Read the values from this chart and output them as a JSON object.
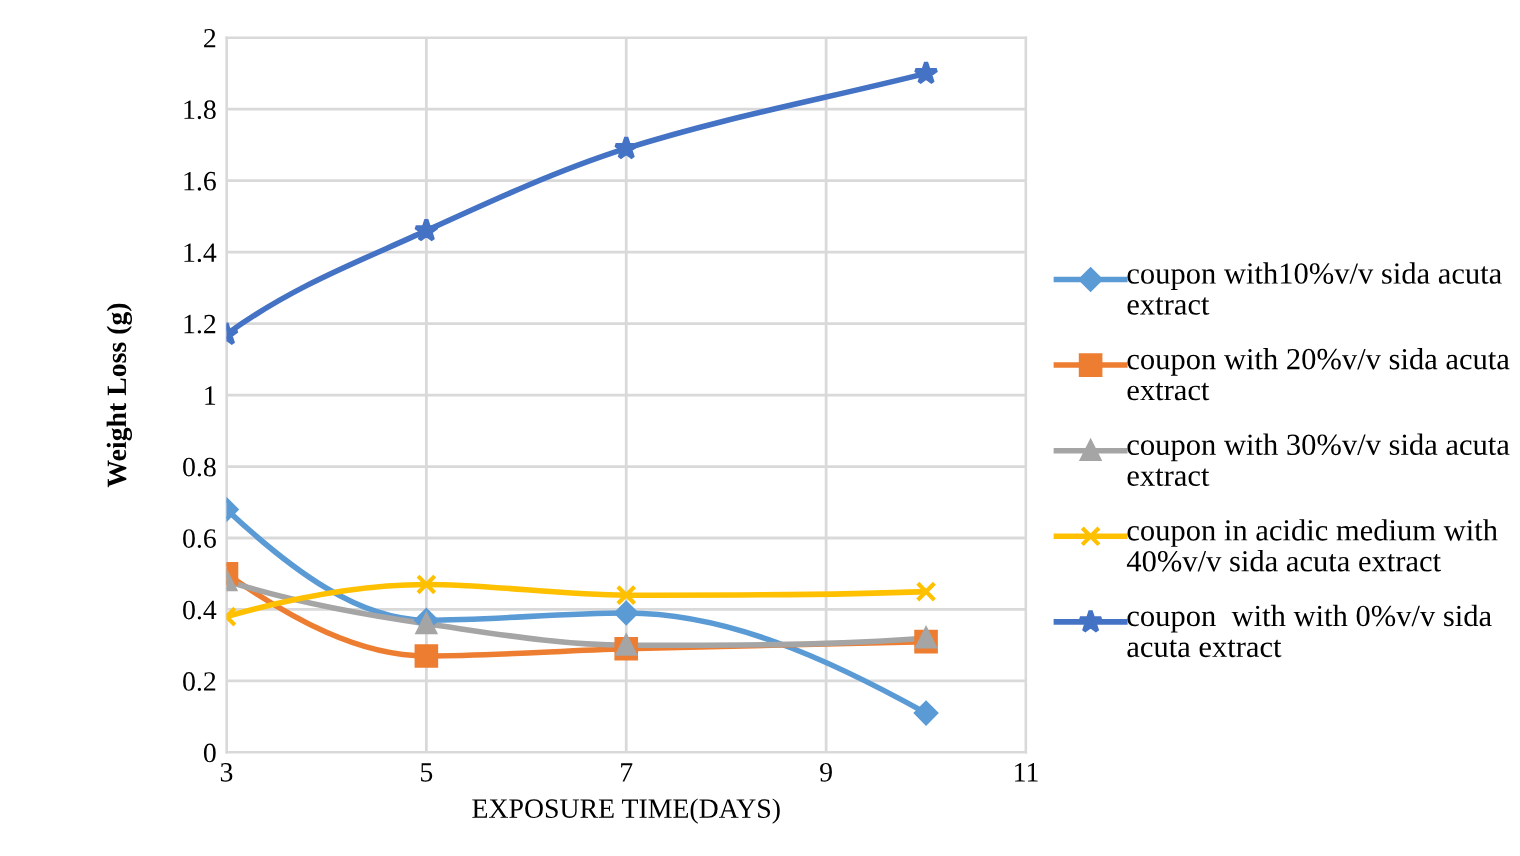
{
  "chart_data": {
    "type": "line",
    "xlabel": "EXPOSURE TIME(DAYS)",
    "ylabel": "Weight Loss (g)",
    "x": [
      3,
      5,
      7,
      10
    ],
    "series": [
      {
        "name": "coupon with10%v/v sida acuta extract",
        "color": "#5b9bd5",
        "marker": "diamond",
        "values": [
          0.68,
          0.37,
          0.39,
          0.11
        ]
      },
      {
        "name": "coupon with 20%v/v sida acuta extract",
        "color": "#ed7d31",
        "marker": "square",
        "values": [
          0.5,
          0.27,
          0.29,
          0.31
        ]
      },
      {
        "name": "coupon with 30%v/v sida acuta extract",
        "color": "#a5a5a5",
        "marker": "triangle",
        "values": [
          0.48,
          0.36,
          0.3,
          0.32
        ]
      },
      {
        "name": "coupon in acidic medium with 40%v/v sida acuta extract",
        "color": "#ffc000",
        "marker": "cross",
        "values": [
          0.38,
          0.47,
          0.44,
          0.45
        ]
      },
      {
        "name": "coupon  with with 0%v/v sida acuta extract",
        "color": "#4472c4",
        "marker": "star",
        "values": [
          1.17,
          1.46,
          1.69,
          1.9
        ]
      }
    ],
    "xlim": [
      3,
      11
    ],
    "xticks": [
      3,
      5,
      7,
      9,
      11
    ],
    "ylim": [
      0,
      2
    ],
    "yticks": [
      0,
      0.2,
      0.4,
      0.6,
      0.8,
      1,
      1.2,
      1.4,
      1.6,
      1.8,
      2
    ],
    "grid": true,
    "legend": "right",
    "line_style": "solid"
  }
}
